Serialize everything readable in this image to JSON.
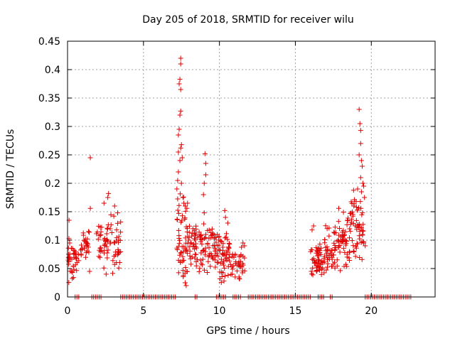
{
  "chart_data": {
    "type": "scatter",
    "title": "Day 205 of 2018, SRMTID for receiver wilu",
    "xlabel": "GPS time / hours",
    "ylabel": "SRMTID / TECUs",
    "xlim": [
      0,
      24.2
    ],
    "ylim": [
      0,
      0.45
    ],
    "xticks": [
      0,
      5,
      10,
      15,
      20
    ],
    "xtick_labels": [
      "0",
      "5",
      "10",
      "15",
      "20"
    ],
    "yticks": [
      0,
      0.05,
      0.1,
      0.15,
      0.2,
      0.25,
      0.3,
      0.35,
      0.4,
      0.45
    ],
    "ytick_labels": [
      "0",
      "0.05",
      "0.1",
      "0.15",
      "0.2",
      "0.25",
      "0.3",
      "0.35",
      "0.4",
      "0.45"
    ],
    "grid": true,
    "marker": "+",
    "series_color": "#e00000",
    "zero_segments": [
      [
        0.5,
        0.8
      ],
      [
        1.6,
        2.2
      ],
      [
        3.5,
        7.2
      ],
      [
        8.4,
        8.6
      ],
      [
        9.8,
        10.4
      ],
      [
        10.9,
        11.4
      ],
      [
        11.9,
        16.0
      ],
      [
        16.5,
        16.9
      ],
      [
        17.3,
        17.5
      ],
      [
        19.6,
        22.7
      ]
    ],
    "clusters": [
      {
        "x0": 0.0,
        "x1": 0.45,
        "base": 0.065,
        "spread": 0.045,
        "count": 28
      },
      {
        "x0": 0.5,
        "x1": 0.95,
        "base": 0.07,
        "spread": 0.03,
        "count": 16
      },
      {
        "x0": 0.95,
        "x1": 1.45,
        "base": 0.09,
        "spread": 0.04,
        "count": 22
      },
      {
        "x0": 1.8,
        "x1": 2.2,
        "base": 0.1,
        "spread": 0.05,
        "count": 14
      },
      {
        "x0": 2.2,
        "x1": 2.75,
        "base": 0.1,
        "spread": 0.07,
        "count": 24
      },
      {
        "x0": 2.8,
        "x1": 3.5,
        "base": 0.09,
        "spread": 0.06,
        "count": 34
      },
      {
        "x0": 7.2,
        "x1": 7.9,
        "base": 0.1,
        "spread": 0.09,
        "count": 55
      },
      {
        "x0": 7.9,
        "x1": 9.0,
        "base": 0.09,
        "spread": 0.05,
        "count": 60
      },
      {
        "x0": 9.0,
        "x1": 10.0,
        "base": 0.08,
        "spread": 0.05,
        "count": 55
      },
      {
        "x0": 10.0,
        "x1": 11.0,
        "base": 0.07,
        "spread": 0.05,
        "count": 55
      },
      {
        "x0": 11.0,
        "x1": 11.7,
        "base": 0.06,
        "spread": 0.035,
        "count": 30
      },
      {
        "x0": 16.0,
        "x1": 16.9,
        "base": 0.065,
        "spread": 0.035,
        "count": 55
      },
      {
        "x0": 16.9,
        "x1": 17.8,
        "base": 0.08,
        "spread": 0.05,
        "count": 50
      },
      {
        "x0": 17.8,
        "x1": 18.6,
        "base": 0.1,
        "spread": 0.06,
        "count": 50
      },
      {
        "x0": 18.6,
        "x1": 19.5,
        "base": 0.12,
        "spread": 0.07,
        "count": 55
      }
    ],
    "notable_points": [
      {
        "x": 1.5,
        "y": 0.245
      },
      {
        "x": 1.5,
        "y": 0.156
      },
      {
        "x": 1.45,
        "y": 0.045
      },
      {
        "x": 2.7,
        "y": 0.182
      },
      {
        "x": 2.65,
        "y": 0.175
      },
      {
        "x": 2.4,
        "y": 0.165
      },
      {
        "x": 3.1,
        "y": 0.16
      },
      {
        "x": 3.3,
        "y": 0.148
      },
      {
        "x": 0.1,
        "y": 0.135
      },
      {
        "x": 7.45,
        "y": 0.42
      },
      {
        "x": 7.45,
        "y": 0.41
      },
      {
        "x": 7.4,
        "y": 0.383
      },
      {
        "x": 7.35,
        "y": 0.375
      },
      {
        "x": 7.45,
        "y": 0.365
      },
      {
        "x": 7.4,
        "y": 0.32
      },
      {
        "x": 7.45,
        "y": 0.327
      },
      {
        "x": 7.35,
        "y": 0.295
      },
      {
        "x": 7.3,
        "y": 0.285
      },
      {
        "x": 7.5,
        "y": 0.268
      },
      {
        "x": 7.45,
        "y": 0.262
      },
      {
        "x": 7.3,
        "y": 0.255
      },
      {
        "x": 7.55,
        "y": 0.245
      },
      {
        "x": 7.4,
        "y": 0.24
      },
      {
        "x": 7.3,
        "y": 0.22
      },
      {
        "x": 7.25,
        "y": 0.205
      },
      {
        "x": 7.5,
        "y": 0.2
      },
      {
        "x": 7.2,
        "y": 0.19
      },
      {
        "x": 7.6,
        "y": 0.175
      },
      {
        "x": 7.9,
        "y": 0.165
      },
      {
        "x": 7.75,
        "y": 0.16
      },
      {
        "x": 9.05,
        "y": 0.252
      },
      {
        "x": 9.1,
        "y": 0.235
      },
      {
        "x": 9.1,
        "y": 0.215
      },
      {
        "x": 9.0,
        "y": 0.2
      },
      {
        "x": 8.95,
        "y": 0.18
      },
      {
        "x": 9.0,
        "y": 0.148
      },
      {
        "x": 10.35,
        "y": 0.152
      },
      {
        "x": 10.4,
        "y": 0.14
      },
      {
        "x": 10.55,
        "y": 0.13
      },
      {
        "x": 10.3,
        "y": 0.028
      },
      {
        "x": 11.55,
        "y": 0.095
      },
      {
        "x": 11.65,
        "y": 0.09
      },
      {
        "x": 16.2,
        "y": 0.125
      },
      {
        "x": 16.1,
        "y": 0.118
      },
      {
        "x": 16.05,
        "y": 0.045
      },
      {
        "x": 19.2,
        "y": 0.33
      },
      {
        "x": 19.25,
        "y": 0.305
      },
      {
        "x": 19.3,
        "y": 0.293
      },
      {
        "x": 19.3,
        "y": 0.27
      },
      {
        "x": 19.2,
        "y": 0.25
      },
      {
        "x": 19.35,
        "y": 0.24
      },
      {
        "x": 19.4,
        "y": 0.23
      },
      {
        "x": 19.3,
        "y": 0.21
      },
      {
        "x": 19.45,
        "y": 0.2
      },
      {
        "x": 19.5,
        "y": 0.195
      },
      {
        "x": 19.1,
        "y": 0.19
      },
      {
        "x": 19.35,
        "y": 0.185
      },
      {
        "x": 19.55,
        "y": 0.175
      },
      {
        "x": 19.0,
        "y": 0.168
      },
      {
        "x": 18.85,
        "y": 0.16
      },
      {
        "x": 19.5,
        "y": 0.095
      },
      {
        "x": 19.6,
        "y": 0.09
      }
    ]
  }
}
